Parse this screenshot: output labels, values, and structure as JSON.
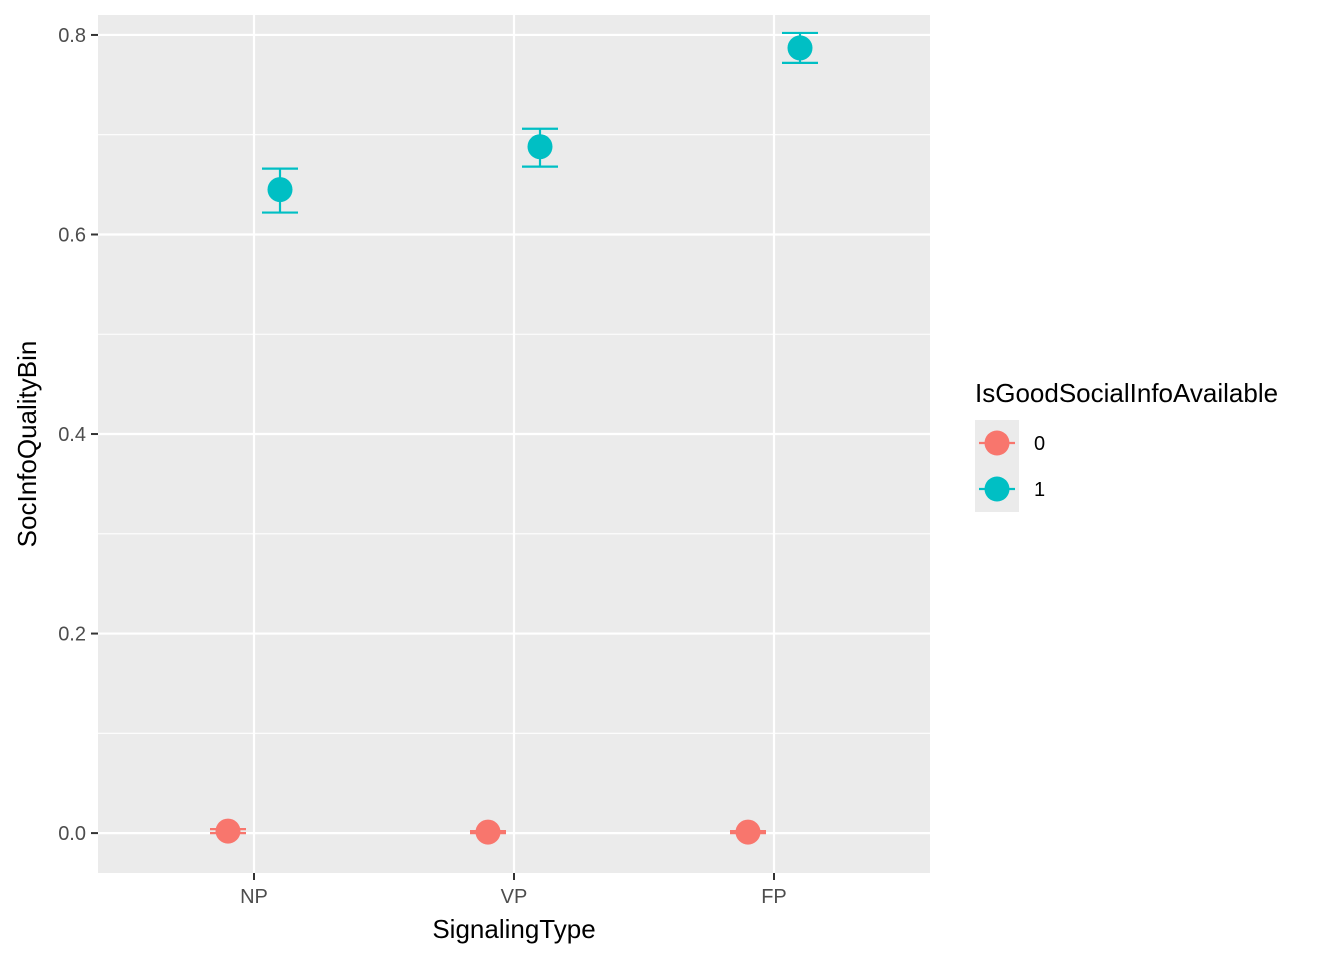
{
  "chart_data": {
    "type": "scatter",
    "subtype": "pointrange with error bars",
    "title": "",
    "xlabel": "SignalingType",
    "ylabel": "SocInfoQualityBin",
    "categories": [
      "NP",
      "VP",
      "FP"
    ],
    "ylim": [
      -0.04,
      0.82
    ],
    "yticks": [
      0.0,
      0.2,
      0.4,
      0.6,
      0.8
    ],
    "ytick_labels": [
      "0.0",
      "0.2",
      "0.4",
      "0.6",
      "0.8"
    ],
    "grid": true,
    "legend": {
      "title": "IsGoodSocialInfoAvailable",
      "position": "right"
    },
    "series": [
      {
        "name": "0",
        "color": "#F8766D",
        "dodge": -1,
        "values": [
          0.002,
          0.001,
          0.001
        ],
        "lower": [
          0.0,
          0.0,
          0.0
        ],
        "upper": [
          0.004,
          0.002,
          0.002
        ]
      },
      {
        "name": "1",
        "color": "#00BFC4",
        "dodge": 1,
        "values": [
          0.645,
          0.688,
          0.787
        ],
        "lower": [
          0.622,
          0.668,
          0.772
        ],
        "upper": [
          0.666,
          0.706,
          0.802
        ]
      }
    ]
  },
  "style": {
    "panel_background": "#EBEBEB",
    "grid_color": "#FFFFFF",
    "tick_color": "#333333"
  }
}
